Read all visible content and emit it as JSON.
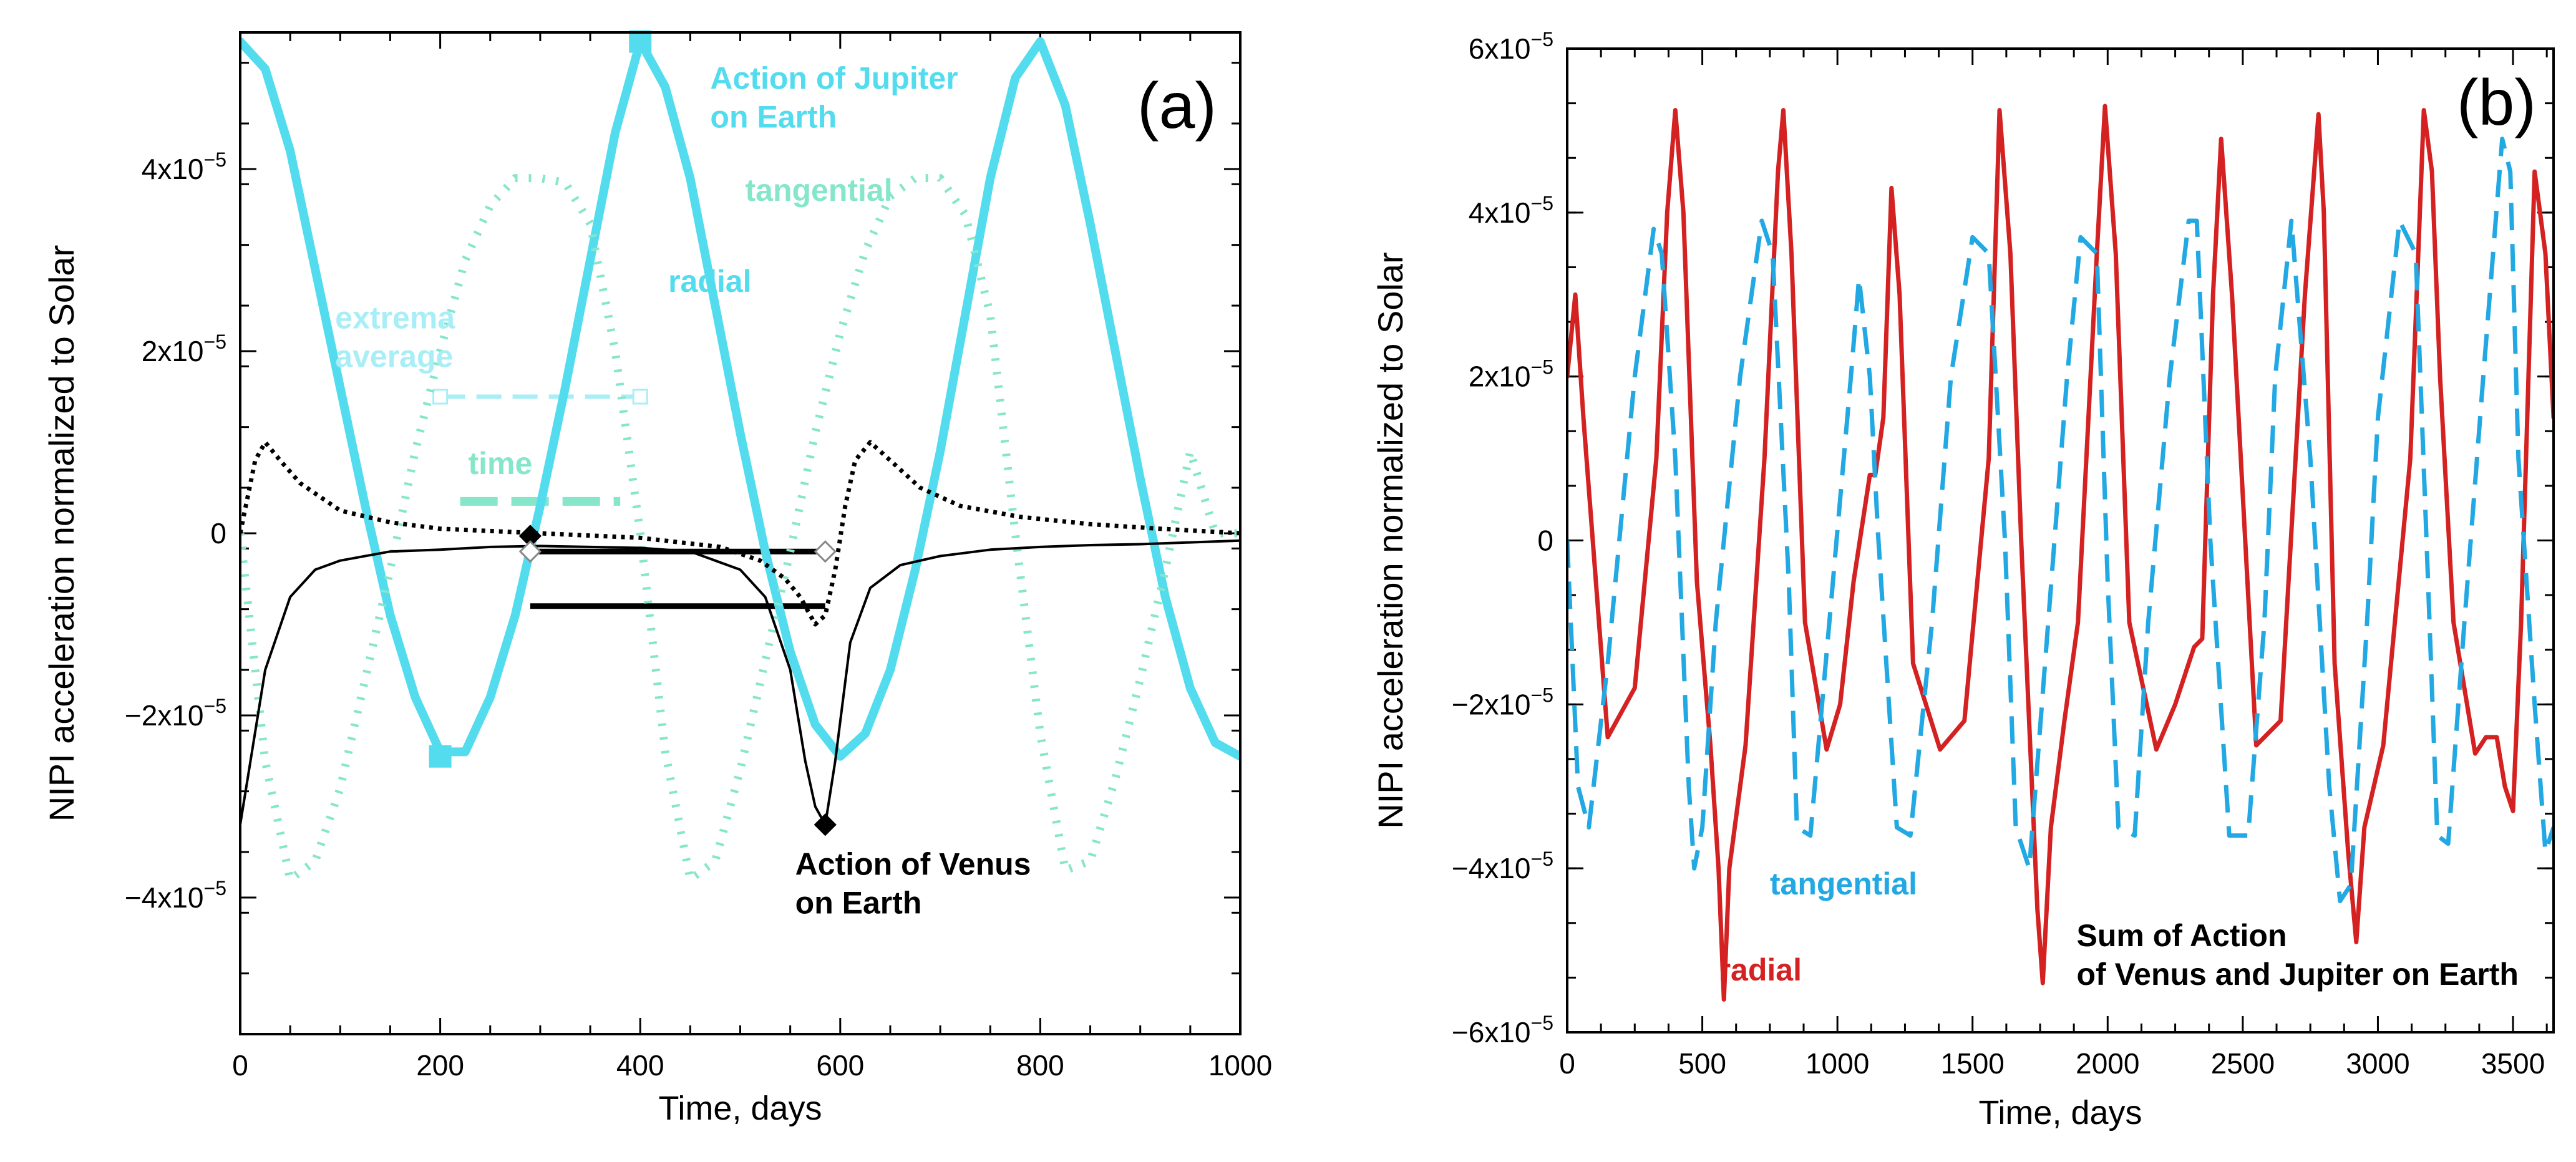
{
  "chart_data": [
    {
      "type": "line",
      "panel_label": "(a)",
      "xlabel": "Time, days",
      "ylabel": "NIPI acceleration normalized to Solar",
      "xlim": [
        0,
        1000
      ],
      "ylim": [
        -5.5e-05,
        5.5e-05
      ],
      "x_ticks": [
        "0",
        "200",
        "400",
        "600",
        "800",
        "1000"
      ],
      "y_ticks": [
        {
          "value": 4e-05,
          "mant": "4x10",
          "exp": "−5"
        },
        {
          "value": 2e-05,
          "mant": "2x10",
          "exp": "−5"
        },
        {
          "value": 0,
          "mant": "0",
          "exp": ""
        },
        {
          "value": -2e-05,
          "mant": "−2x10",
          "exp": "−5"
        },
        {
          "value": -4e-05,
          "mant": "−4x10",
          "exp": "−5"
        }
      ],
      "colors": {
        "radial": "#52DCEE",
        "tangential": "#86E6C9",
        "venus": "#000000",
        "average": "#A8EEF7"
      },
      "annotations": [
        {
          "id": "jupiter",
          "lines": [
            "Action of Jupiter",
            "on Earth"
          ],
          "color": "#52DCEE",
          "bold": true,
          "x": 470,
          "y": 4.88e-05
        },
        {
          "id": "tangential",
          "lines": [
            "tangential"
          ],
          "color": "#86E6C9",
          "bold": true,
          "x": 505,
          "y": 3.65e-05
        },
        {
          "id": "radial",
          "lines": [
            "radial"
          ],
          "color": "#52DCEE",
          "bold": true,
          "x": 428,
          "y": 2.65e-05
        },
        {
          "id": "extrema",
          "lines": [
            "extrema",
            "average"
          ],
          "color": "#A8EEF7",
          "bold": true,
          "x": 95,
          "y": 2.25e-05
        },
        {
          "id": "time",
          "lines": [
            "time"
          ],
          "color": "#86E6C9",
          "bold": true,
          "x": 228,
          "y": 6.5e-06
        },
        {
          "id": "venus",
          "lines": [
            "Action of Venus",
            "on Earth"
          ],
          "color": "#000000",
          "bold": true,
          "x": 555,
          "y": -3.75e-05
        }
      ],
      "series": [
        {
          "id": "jupiter-radial",
          "style": "solid-thick",
          "color": "#52DCEE",
          "x": [
            0,
            25,
            50,
            75,
            100,
            125,
            150,
            175,
            200,
            225,
            250,
            275,
            300,
            325,
            350,
            375,
            400,
            425,
            450,
            475,
            500,
            525,
            550,
            575,
            600,
            625,
            650,
            675,
            700,
            725,
            750,
            775,
            800,
            825,
            850,
            875,
            900,
            925,
            950,
            975,
            1000
          ],
          "y": [
            5.4e-05,
            5.1e-05,
            4.2e-05,
            2.9e-05,
            1.6e-05,
            3e-06,
            -9e-06,
            -1.8e-05,
            -2.4e-05,
            -2.4e-05,
            -1.8e-05,
            -9e-06,
            3e-06,
            1.6e-05,
            3e-05,
            4.4e-05,
            5.4e-05,
            4.9e-05,
            3.9e-05,
            2.5e-05,
            1.1e-05,
            -2e-06,
            -1.3e-05,
            -2.1e-05,
            -2.45e-05,
            -2.2e-05,
            -1.5e-05,
            -4e-06,
            9e-06,
            2.4e-05,
            3.9e-05,
            5e-05,
            5.4e-05,
            4.7e-05,
            3.4e-05,
            2e-05,
            6e-06,
            -7e-06,
            -1.7e-05,
            -2.3e-05,
            -2.45e-05
          ]
        },
        {
          "id": "jupiter-tangential",
          "style": "dotted-thick",
          "color": "#86E6C9",
          "x": [
            0,
            25,
            50,
            75,
            100,
            125,
            150,
            175,
            200,
            225,
            250,
            275,
            300,
            325,
            350,
            375,
            400,
            425,
            450,
            475,
            500,
            525,
            550,
            575,
            600,
            625,
            650,
            675,
            700,
            725,
            750,
            775,
            800,
            825,
            850,
            875,
            900,
            925,
            950,
            975,
            1000
          ],
          "y": [
            0,
            -2.5e-05,
            -3.8e-05,
            -3.6e-05,
            -2.8e-05,
            -1.6e-05,
            -4e-06,
            9e-06,
            2e-05,
            3e-05,
            3.6e-05,
            3.9e-05,
            3.9e-05,
            3.85e-05,
            3.4e-05,
            2e-05,
            0,
            -2.4e-05,
            -3.8e-05,
            -3.6e-05,
            -2.6e-05,
            -1.4e-05,
            -2e-06,
            1.1e-05,
            2.2e-05,
            3.1e-05,
            3.7e-05,
            3.9e-05,
            3.9e-05,
            3.5e-05,
            2.4e-05,
            0,
            -2.2e-05,
            -3.7e-05,
            -3.6e-05,
            -2.7e-05,
            -1.6e-05,
            -4e-06,
            9e-06,
            0,
            0
          ]
        },
        {
          "id": "venus-radial",
          "style": "solid-thin",
          "color": "#000000",
          "x": [
            0,
            25,
            50,
            75,
            100,
            150,
            200,
            250,
            300,
            350,
            400,
            450,
            500,
            525,
            550,
            565,
            575,
            585,
            595,
            610,
            630,
            660,
            700,
            750,
            800,
            850,
            900,
            950,
            1000
          ],
          "y": [
            -3.2e-05,
            -1.5e-05,
            -7e-06,
            -4e-06,
            -3e-06,
            -2e-06,
            -1.8e-06,
            -1.5e-06,
            -1.4e-06,
            -1.5e-06,
            -1.6e-06,
            -2e-06,
            -4e-06,
            -7e-06,
            -1.5e-05,
            -2.5e-05,
            -3e-05,
            -3.2e-05,
            -2.5e-05,
            -1.2e-05,
            -6e-06,
            -3.5e-06,
            -2.5e-06,
            -1.8e-06,
            -1.5e-06,
            -1.3e-06,
            -1.2e-06,
            -1e-06,
            -8e-07
          ]
        },
        {
          "id": "venus-tangential",
          "style": "dotted-thin",
          "color": "#000000",
          "x": [
            0,
            15,
            25,
            40,
            60,
            80,
            100,
            150,
            200,
            300,
            400,
            480,
            520,
            545,
            560,
            575,
            585,
            595,
            605,
            615,
            630,
            650,
            680,
            720,
            780,
            850,
            920,
            1000
          ],
          "y": [
            0,
            8e-06,
            1e-05,
            8e-06,
            5.5e-06,
            4e-06,
            2.5e-06,
            1.2e-06,
            5e-07,
            0,
            -5e-07,
            -1.5e-06,
            -3e-06,
            -5e-06,
            -7e-06,
            -1e-05,
            -9e-06,
            -4e-06,
            3e-06,
            8e-06,
            1e-05,
            8e-06,
            5e-06,
            3e-06,
            1.8e-06,
            1e-06,
            5e-07,
            0
          ]
        }
      ],
      "markers": [
        {
          "id": "jupiter-max",
          "x": 400,
          "y": 5.4e-05,
          "color": "#52DCEE"
        },
        {
          "id": "jupiter-min",
          "x": 200,
          "y": -2.45e-05,
          "color": "#52DCEE"
        },
        {
          "id": "venus-min",
          "x": 585,
          "y": -3.2e-05,
          "color": "#000000",
          "shape": "diamond",
          "fill": "#000000"
        },
        {
          "id": "venus-zero",
          "x": 290,
          "y": -3e-07,
          "color": "#000000",
          "shape": "diamond",
          "fill": "#000000"
        },
        {
          "id": "venus-open-left",
          "x": 290,
          "y": -2e-06,
          "color": "#888888",
          "shape": "diamond",
          "fill": "#ffffff"
        },
        {
          "id": "venus-open-right",
          "x": 585,
          "y": -2e-06,
          "color": "#888888",
          "shape": "diamond",
          "fill": "#ffffff"
        }
      ],
      "segments": [
        {
          "id": "jupiter-extrema-average",
          "x1": 200,
          "x2": 400,
          "y": 1.5e-05,
          "color": "#A8EEF7",
          "style": "dashed-open"
        },
        {
          "id": "jupiter-time",
          "x1": 220,
          "x2": 380,
          "y": 3.5e-06,
          "color": "#86E6C9",
          "style": "dashed-thick"
        },
        {
          "id": "venus-average",
          "x1": 298,
          "x2": 578,
          "y": -2e-06,
          "color": "#000000",
          "style": "solid-thick"
        },
        {
          "id": "venus-time",
          "x1": 290,
          "x2": 585,
          "y": -8e-06,
          "color": "#000000",
          "style": "solid-thick"
        }
      ]
    },
    {
      "type": "line",
      "panel_label": "(b)",
      "xlabel": "Time, days",
      "ylabel": "NIPI acceleration normalized to Solar",
      "xlim": [
        0,
        3650
      ],
      "ylim": [
        -6e-05,
        6e-05
      ],
      "x_ticks": [
        "0",
        "500",
        "1000",
        "1500",
        "2000",
        "2500",
        "3000",
        "3500"
      ],
      "y_ticks": [
        {
          "value": 6e-05,
          "mant": "6x10",
          "exp": "−5"
        },
        {
          "value": 4e-05,
          "mant": "4x10",
          "exp": "−5"
        },
        {
          "value": 2e-05,
          "mant": "2x10",
          "exp": "−5"
        },
        {
          "value": 0,
          "mant": "0",
          "exp": ""
        },
        {
          "value": -2e-05,
          "mant": "−2x10",
          "exp": "−5"
        },
        {
          "value": -4e-05,
          "mant": "−4x10",
          "exp": "−5"
        },
        {
          "value": -6e-05,
          "mant": "−6x10",
          "exp": "−5"
        }
      ],
      "colors": {
        "radial": "#D42121",
        "tangential": "#22A8E2"
      },
      "annotations": [
        {
          "id": "tangential",
          "lines": [
            "tangential"
          ],
          "color": "#22A8E2",
          "bold": true,
          "x": 750,
          "y": -4.32e-05
        },
        {
          "id": "radial",
          "lines": [
            "radial"
          ],
          "color": "#D42121",
          "bold": true,
          "x": 560,
          "y": -5.37e-05
        },
        {
          "id": "sum",
          "lines": [
            "Sum of Action",
            "of Venus and Jupiter on Earth"
          ],
          "color": "#000000",
          "bold": true,
          "x": 1885,
          "y": -4.95e-05
        }
      ],
      "series": [
        {
          "id": "sum-radial",
          "style": "solid",
          "color": "#D42121",
          "x": [
            0,
            30,
            60,
            150,
            250,
            330,
            370,
            400,
            430,
            480,
            530,
            560,
            580,
            600,
            660,
            730,
            780,
            800,
            830,
            880,
            960,
            1010,
            1060,
            1120,
            1140,
            1170,
            1200,
            1230,
            1280,
            1380,
            1470,
            1560,
            1600,
            1640,
            1680,
            1720,
            1740,
            1760,
            1790,
            1840,
            1890,
            1960,
            1990,
            2030,
            2080,
            2180,
            2250,
            2300,
            2320,
            2350,
            2390,
            2420,
            2460,
            2550,
            2640,
            2730,
            2780,
            2800,
            2840,
            2890,
            2920,
            2950,
            3020,
            3120,
            3170,
            3200,
            3230,
            3280,
            3360,
            3400,
            3440,
            3470,
            3500,
            3530,
            3580,
            3620,
            3650
          ],
          "y": [
            2e-05,
            3e-05,
            1.5e-05,
            -2.4e-05,
            -1.8e-05,
            1e-05,
            4e-05,
            5.25e-05,
            4e-05,
            -5e-06,
            -2.5e-05,
            -4e-05,
            -5.6e-05,
            -4e-05,
            -2.5e-05,
            1e-05,
            4.5e-05,
            5.25e-05,
            3.5e-05,
            -1e-05,
            -2.55e-05,
            -2e-05,
            -5e-06,
            8e-06,
            8e-06,
            1.5e-05,
            4.3e-05,
            3e-05,
            -1.5e-05,
            -2.55e-05,
            -2.2e-05,
            1e-05,
            5.25e-05,
            3.5e-05,
            0,
            -3e-05,
            -4.5e-05,
            -5.4e-05,
            -3.5e-05,
            -2.2e-05,
            -1e-05,
            3.5e-05,
            5.3e-05,
            3.5e-05,
            -1e-05,
            -2.55e-05,
            -2e-05,
            -1.5e-05,
            -1.3e-05,
            -1.2e-05,
            3e-05,
            4.9e-05,
            3e-05,
            -2.5e-05,
            -2.2e-05,
            3e-05,
            5.2e-05,
            4e-05,
            -1.5e-05,
            -3.8e-05,
            -4.9e-05,
            -3.5e-05,
            -2.5e-05,
            1e-05,
            5.25e-05,
            4.5e-05,
            2e-05,
            -1e-05,
            -2.6e-05,
            -2.4e-05,
            -2.4e-05,
            -3e-05,
            -3.3e-05,
            -1e-05,
            4.5e-05,
            3.5e-05,
            1.5e-05
          ]
        },
        {
          "id": "sum-tangential",
          "style": "dashed",
          "color": "#22A8E2",
          "x": [
            0,
            40,
            80,
            150,
            250,
            320,
            350,
            400,
            450,
            470,
            500,
            550,
            640,
            720,
            760,
            820,
            850,
            900,
            970,
            1050,
            1080,
            1120,
            1150,
            1220,
            1270,
            1350,
            1420,
            1500,
            1560,
            1620,
            1660,
            1710,
            1780,
            1850,
            1900,
            1960,
            2000,
            2040,
            2100,
            2150,
            2230,
            2300,
            2330,
            2380,
            2450,
            2520,
            2580,
            2620,
            2680,
            2750,
            2820,
            2860,
            2900,
            2960,
            3000,
            3080,
            3140,
            3180,
            3220,
            3260,
            3320,
            3390,
            3460,
            3490,
            3520,
            3580,
            3620,
            3650
          ],
          "y": [
            0,
            -3e-05,
            -3.5e-05,
            -1.5e-05,
            2e-05,
            3.8e-05,
            3.5e-05,
            1e-05,
            -3e-05,
            -4e-05,
            -3.5e-05,
            -1e-05,
            2e-05,
            3.9e-05,
            3.5e-05,
            -5e-06,
            -3.5e-05,
            -3.6e-05,
            -1e-05,
            2e-05,
            3.2e-05,
            2e-05,
            1e-06,
            -3.5e-05,
            -3.6e-05,
            -1e-05,
            2e-05,
            3.7e-05,
            3.5e-05,
            0,
            -3.5e-05,
            -4e-05,
            -1e-05,
            2e-05,
            3.7e-05,
            3.5e-05,
            -5e-06,
            -3.5e-05,
            -3.6e-05,
            -1e-05,
            2e-05,
            3.9e-05,
            3.9e-05,
            0,
            -3.6e-05,
            -3.6e-05,
            -1e-05,
            2e-05,
            3.9e-05,
            1e-05,
            -3e-05,
            -4.4e-05,
            -4.2e-05,
            -1e-05,
            1.5e-05,
            3.9e-05,
            3.5e-05,
            0,
            -3.6e-05,
            -3.7e-05,
            -1e-05,
            2e-05,
            4.9e-05,
            4.5e-05,
            1e-05,
            -2e-05,
            -3.8e-05,
            -3.5e-05
          ]
        }
      ]
    }
  ]
}
